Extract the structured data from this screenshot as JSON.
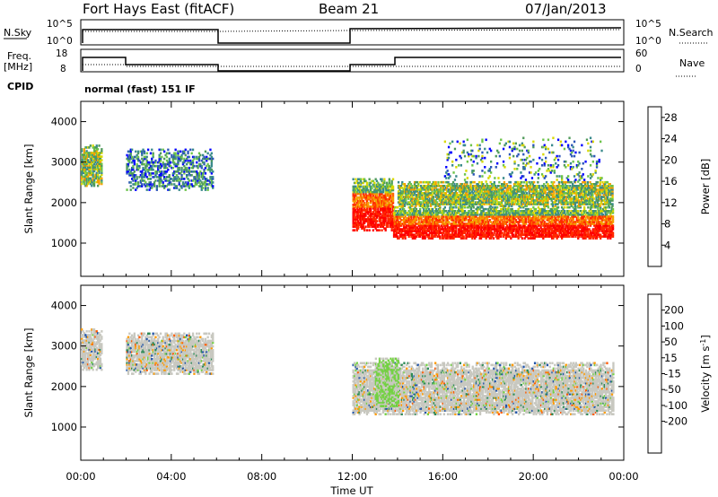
{
  "header": {
    "station": "Fort Hays East (fitACF)",
    "beam": "Beam 21",
    "date": "07/Jan/2013"
  },
  "status_panels": {
    "nsky_label": "N.Sky",
    "nsearch_label": "N.Search",
    "noise_tick_top": "10^5",
    "noise_tick_bottom": "10^0",
    "freq_label_line1": "Freq.",
    "freq_label_line2": "[MHz]",
    "freq_ticks": [
      "18",
      "8"
    ],
    "nave_label": "Nave",
    "nave_ticks": [
      "60",
      "0"
    ],
    "cpid_label": "CPID",
    "cpid_text": "normal (fast) 151 IF",
    "nsearch_legend_style": "dotted",
    "nave_legend_style": "dotted"
  },
  "colors": {
    "power_scale": [
      "#0000ff",
      "#2b55b8",
      "#3a8a8c",
      "#4f9a5a",
      "#6cc34a",
      "#d8d800",
      "#f5a000",
      "#ff6600",
      "#ff2a00",
      "#ff0000"
    ],
    "velocity_scale": [
      "#ff0000",
      "#ff5a00",
      "#ff9a00",
      "#e0a030",
      "#c8c8c0",
      "#c8c8c0",
      "#74d244",
      "#2e8b57",
      "#2255aa",
      "#1a3fbf"
    ]
  },
  "chart_data": [
    {
      "type": "heatmap",
      "name": "power",
      "xlabel": "",
      "ylabel": "Slant Range [km]",
      "xlim": [
        0,
        24
      ],
      "ylim": [
        180,
        4500
      ],
      "y_ticks": [
        "1000",
        "2000",
        "3000",
        "4000"
      ],
      "colorbar_label": "Power [dB]",
      "colorbar_ticks": [
        "4",
        "8",
        "12",
        "16",
        "20",
        "24",
        "28"
      ],
      "colorbar_range": [
        0,
        30
      ],
      "bands": [
        {
          "t_start": 0.0,
          "t_end": 0.9,
          "range_km": [
            2400,
            3400
          ],
          "level": "medium"
        },
        {
          "t_start": 2.0,
          "t_end": 5.8,
          "range_km": [
            2300,
            3300
          ],
          "level": "low"
        },
        {
          "t_start": 12.0,
          "t_end": 13.8,
          "range_km": [
            1300,
            2600
          ],
          "level": "high"
        },
        {
          "t_start": 13.8,
          "t_end": 23.5,
          "range_km": [
            1100,
            1900
          ],
          "level": "high"
        },
        {
          "t_start": 14.0,
          "t_end": 23.5,
          "range_km": [
            1900,
            2500
          ],
          "level": "medium"
        },
        {
          "t_start": 16.0,
          "t_end": 23.0,
          "range_km": [
            2500,
            3600
          ],
          "level": "sparse"
        }
      ]
    },
    {
      "type": "heatmap",
      "name": "velocity",
      "xlabel": "Time UT",
      "ylabel": "Slant Range [km]",
      "xlim": [
        0,
        24
      ],
      "ylim": [
        180,
        4500
      ],
      "x_ticks": [
        "00:00",
        "04:00",
        "08:00",
        "12:00",
        "16:00",
        "20:00",
        "00:00"
      ],
      "y_ticks": [
        "1000",
        "2000",
        "3000",
        "4000"
      ],
      "colorbar_label": "Velocity [m s^-1]",
      "colorbar_ticks": [
        "200",
        "100",
        "50",
        "15",
        "-15",
        "-50",
        "-100",
        "-200"
      ],
      "colorbar_range": [
        -250,
        250
      ],
      "bands": [
        {
          "t_start": 0.0,
          "t_end": 0.9,
          "range_km": [
            2400,
            3400
          ],
          "level": "near-zero"
        },
        {
          "t_start": 2.0,
          "t_end": 5.8,
          "range_km": [
            2300,
            3300
          ],
          "level": "near-zero"
        },
        {
          "t_start": 12.0,
          "t_end": 23.5,
          "range_km": [
            1300,
            2600
          ],
          "level": "near-zero"
        },
        {
          "t_start": 13.0,
          "t_end": 14.0,
          "range_km": [
            1500,
            2700
          ],
          "level": "positive-small"
        }
      ]
    }
  ]
}
